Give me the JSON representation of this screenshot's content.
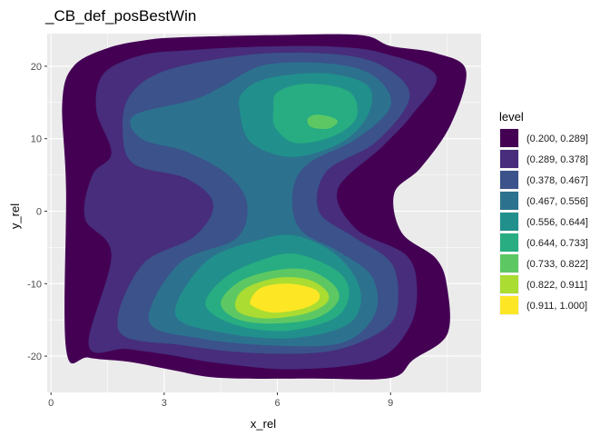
{
  "chart_data": {
    "type": "contour",
    "title": "_CB_def_posBestWin",
    "xlabel": "x_rel",
    "ylabel": "y_rel",
    "xlim": [
      -0.1,
      11.4
    ],
    "ylim": [
      -25,
      24.5
    ],
    "x_ticks": [
      0,
      3,
      6,
      9
    ],
    "x_tick_labels": [
      "0",
      "3",
      "6",
      "9"
    ],
    "y_ticks": [
      -20,
      -10,
      0,
      10,
      20
    ],
    "y_tick_labels": [
      "-20",
      "-10",
      "0",
      "10",
      "20"
    ],
    "grid": true,
    "panel_background": "#ebebeb",
    "legend_position": "right",
    "legend": {
      "title": "level",
      "entries": [
        {
          "label": "(0.200, 0.289]",
          "color": "#440154"
        },
        {
          "label": "(0.289, 0.378]",
          "color": "#472D7B"
        },
        {
          "label": "(0.378, 0.467]",
          "color": "#3B528B"
        },
        {
          "label": "(0.467, 0.556]",
          "color": "#2C728E"
        },
        {
          "label": "(0.556, 0.644]",
          "color": "#21908C"
        },
        {
          "label": "(0.644, 0.733]",
          "color": "#27AD81"
        },
        {
          "label": "(0.733, 0.822]",
          "color": "#5DC863"
        },
        {
          "label": "(0.822, 0.911]",
          "color": "#AADC32"
        },
        {
          "label": "(0.911, 1.000]",
          "color": "#FDE725"
        }
      ]
    },
    "density_peaks": [
      {
        "x": 6.0,
        "y": -12.0,
        "level_band": "(0.911, 1.000]"
      },
      {
        "x": 7.1,
        "y": 12.0,
        "level_band": "(0.733, 0.822]"
      }
    ],
    "bands": [
      {
        "level": 0,
        "points": [
          [
            0.4,
            -19
          ],
          [
            0.4,
            3
          ],
          [
            0.3,
            15
          ],
          [
            0.6,
            20
          ],
          [
            1.5,
            22.5
          ],
          [
            2.5,
            23.6
          ],
          [
            3.5,
            24
          ],
          [
            6,
            24.3
          ],
          [
            8.2,
            24.3
          ],
          [
            9,
            22.8
          ],
          [
            10.2,
            21.8
          ],
          [
            11,
            19.4
          ],
          [
            10.6,
            12
          ],
          [
            9.8,
            6
          ],
          [
            9.1,
            2.5
          ],
          [
            9.3,
            -3
          ],
          [
            10.2,
            -6.5
          ],
          [
            10.5,
            -10.5
          ],
          [
            10.5,
            -17
          ],
          [
            9.6,
            -20.5
          ],
          [
            9,
            -23
          ],
          [
            7,
            -23.1
          ],
          [
            4.5,
            -23
          ],
          [
            3.3,
            -22
          ],
          [
            2.1,
            -20.8
          ],
          [
            1,
            -20.2
          ]
        ]
      },
      {
        "level": 1,
        "points": [
          [
            1,
            -18.5
          ],
          [
            1.6,
            -6
          ],
          [
            0.9,
            -1
          ],
          [
            1.1,
            5
          ],
          [
            1.6,
            8
          ],
          [
            1.2,
            14
          ],
          [
            1.4,
            19
          ],
          [
            2.4,
            21.5
          ],
          [
            3.6,
            22.2
          ],
          [
            5.5,
            22.7
          ],
          [
            7.5,
            22.7
          ],
          [
            8.8,
            21.8
          ],
          [
            10.2,
            18.8
          ],
          [
            9.6,
            13.5
          ],
          [
            8.8,
            9
          ],
          [
            7.6,
            3
          ],
          [
            8.1,
            -2.5
          ],
          [
            9.4,
            -6
          ],
          [
            9.7,
            -10.5
          ],
          [
            9.5,
            -16
          ],
          [
            8.6,
            -20.5
          ],
          [
            6.5,
            -21.8
          ],
          [
            4.5,
            -21
          ],
          [
            3.1,
            -19.8
          ],
          [
            2,
            -19
          ]
        ]
      },
      {
        "level": 2,
        "points": [
          [
            1.8,
            -16.5
          ],
          [
            2.4,
            -7.5
          ],
          [
            3.8,
            -3.5
          ],
          [
            4.3,
            1
          ],
          [
            3.6,
            4.5
          ],
          [
            2.2,
            6.5
          ],
          [
            1.9,
            11
          ],
          [
            2.1,
            16
          ],
          [
            3.1,
            19.5
          ],
          [
            5.5,
            21.7
          ],
          [
            7.8,
            21.5
          ],
          [
            9,
            19.4
          ],
          [
            9.5,
            15.5
          ],
          [
            8.6,
            9.5
          ],
          [
            7.3,
            5.5
          ],
          [
            7.1,
            0
          ],
          [
            8,
            -3.5
          ],
          [
            9,
            -7
          ],
          [
            9.2,
            -12
          ],
          [
            8.9,
            -16
          ],
          [
            7.5,
            -19.2
          ],
          [
            5.5,
            -19.6
          ],
          [
            3.5,
            -18.5
          ]
        ]
      },
      {
        "level": 3,
        "points": [
          [
            2.6,
            -15.2
          ],
          [
            3.4,
            -7.2
          ],
          [
            4.9,
            -3.8
          ],
          [
            5.2,
            1
          ],
          [
            4.7,
            5
          ],
          [
            3.6,
            8.2
          ],
          [
            2.4,
            10
          ],
          [
            2.2,
            13.2
          ],
          [
            3.8,
            15.4
          ],
          [
            4.6,
            17.4
          ],
          [
            5.7,
            20.2
          ],
          [
            7.5,
            20.3
          ],
          [
            8.6,
            18.5
          ],
          [
            9,
            14.5
          ],
          [
            8.1,
            10
          ],
          [
            6.8,
            6.5
          ],
          [
            6.4,
            2.5
          ],
          [
            6.6,
            -2.5
          ],
          [
            7.6,
            -5.5
          ],
          [
            8.5,
            -9
          ],
          [
            8.6,
            -14
          ],
          [
            7.8,
            -18
          ],
          [
            6.2,
            -18.6
          ],
          [
            4,
            -17.6
          ]
        ]
      },
      {
        "level": 4,
        "points": [
          [
            3.3,
            -14.3
          ],
          [
            4.1,
            -7
          ],
          [
            5.5,
            -4
          ],
          [
            6.5,
            -3.4
          ],
          [
            7.6,
            -6.2
          ],
          [
            8.2,
            -11
          ],
          [
            7.9,
            -15.5
          ],
          [
            6.4,
            -17.5
          ],
          [
            4.6,
            -16.8
          ]
        ]
      },
      {
        "level": 4,
        "points": [
          [
            5,
            14
          ],
          [
            5.1,
            16.5
          ],
          [
            5.8,
            18.4
          ],
          [
            7.3,
            19
          ],
          [
            8.4,
            17.3
          ],
          [
            8.4,
            13.3
          ],
          [
            7.7,
            9.5
          ],
          [
            6.4,
            7.5
          ],
          [
            5.3,
            9.5
          ]
        ]
      },
      {
        "level": 5,
        "points": [
          [
            4.1,
            -13
          ],
          [
            4.6,
            -9.2
          ],
          [
            5.6,
            -6.7
          ],
          [
            6.5,
            -5.9
          ],
          [
            7.6,
            -8.3
          ],
          [
            7.9,
            -11.5
          ],
          [
            7.5,
            -14.8
          ],
          [
            6.2,
            -16.5
          ],
          [
            4.9,
            -15.7
          ]
        ]
      },
      {
        "level": 5,
        "points": [
          [
            5.9,
            14
          ],
          [
            6,
            16.4
          ],
          [
            6.8,
            17.6
          ],
          [
            7.9,
            16.5
          ],
          [
            8.1,
            13
          ],
          [
            7.5,
            10.4
          ],
          [
            6.5,
            9.4
          ],
          [
            5.95,
            11.5
          ]
        ]
      },
      {
        "level": 6,
        "points": [
          [
            4.5,
            -12.6
          ],
          [
            5,
            -9.7
          ],
          [
            5.9,
            -8.2
          ],
          [
            6.8,
            -8.1
          ],
          [
            7.5,
            -10.2
          ],
          [
            7.6,
            -12.5
          ],
          [
            7,
            -14.8
          ],
          [
            5.8,
            -15.5
          ],
          [
            4.9,
            -14.8
          ]
        ]
      },
      {
        "level": 6,
        "points": [
          [
            6.8,
            12.7
          ],
          [
            7,
            13.3
          ],
          [
            7.35,
            13.1
          ],
          [
            7.6,
            12.4
          ],
          [
            7.35,
            11.4
          ],
          [
            6.9,
            11.6
          ]
        ]
      },
      {
        "level": 7,
        "points": [
          [
            4.9,
            -12.3
          ],
          [
            5.2,
            -10.5
          ],
          [
            6,
            -9.2
          ],
          [
            6.8,
            -9.4
          ],
          [
            7.3,
            -11
          ],
          [
            7.3,
            -12.7
          ],
          [
            6.7,
            -14.2
          ],
          [
            5.7,
            -14.8
          ],
          [
            5,
            -14
          ]
        ]
      },
      {
        "level": 8,
        "points": [
          [
            5.3,
            -12.1
          ],
          [
            5.6,
            -10.5
          ],
          [
            6.3,
            -10
          ],
          [
            7,
            -10.8
          ],
          [
            7.1,
            -12.2
          ],
          [
            6.7,
            -13.4
          ],
          [
            5.9,
            -14
          ],
          [
            5.35,
            -13.1
          ]
        ]
      }
    ]
  }
}
